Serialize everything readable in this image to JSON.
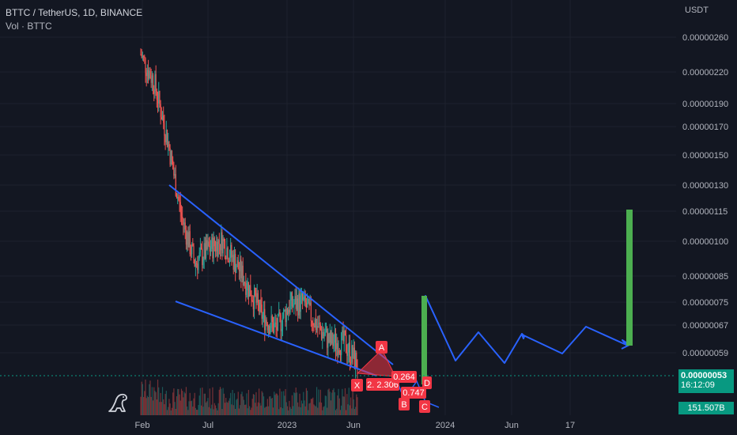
{
  "header": {
    "symbol_line": "BTTC / TetherUS, 1D, BINANCE",
    "volume_line": "Vol · BTTC"
  },
  "price_axis": {
    "unit": "USDT",
    "ticks": [
      "0.00000260",
      "0.00000220",
      "0.00000190",
      "0.00000170",
      "0.00000150",
      "0.00000130",
      "0.00000115",
      "0.00000100",
      "0.00000085",
      "0.00000075",
      "0.00000067",
      "0.00000059"
    ]
  },
  "time_axis": {
    "ticks": [
      "Feb",
      "Jul",
      "2023",
      "Jun",
      "2024",
      "Jun",
      "17"
    ]
  },
  "last_price": {
    "value": "0.00000053",
    "countdown": "16:12:09",
    "color": "#089981"
  },
  "volume_tag": {
    "value": "151.507B",
    "color": "#089981"
  },
  "harmonic_labels": {
    "X": "X",
    "A": "A",
    "B": "B",
    "C": "C",
    "D": "D",
    "ratio_xab": "2. 2.306",
    "ratio_1": "0.264",
    "ratio_2": "0.747"
  },
  "colors": {
    "background": "#131722",
    "up": "#26a69a",
    "down": "#ef5350",
    "trendline": "#2962ff",
    "projection": "#2962ff",
    "target_bar": "#4caf50",
    "harmonic": "#f23645"
  },
  "icons": {
    "logo": "tradingview-dino-icon"
  },
  "chart_data": {
    "type": "candlestick",
    "symbol": "BTTC / TetherUS",
    "interval": "1D",
    "exchange": "BINANCE",
    "y_scale": "log",
    "ylim": [
      5e-07,
      2.7e-06
    ],
    "x_ticks": [
      "Feb",
      "Jul",
      "2023",
      "Jun",
      "2024",
      "Jun",
      "17"
    ],
    "last_price": 5.3e-07,
    "volume_last": "151.507B",
    "price_path": [
      {
        "x": "Feb",
        "price": 2.4e-06
      },
      {
        "x": "Mar",
        "price": 2.1e-06
      },
      {
        "x": "Apr",
        "price": 1.6e-06
      },
      {
        "x": "May",
        "price": 1.12e-06
      },
      {
        "x": "Jun",
        "price": 9e-07
      },
      {
        "x": "Jul",
        "price": 9.6e-07
      },
      {
        "x": "Aug",
        "price": 1e-06
      },
      {
        "x": "Sep",
        "price": 9e-07
      },
      {
        "x": "Oct",
        "price": 8e-07
      },
      {
        "x": "Nov",
        "price": 7e-07
      },
      {
        "x": "Dec",
        "price": 6.6e-07
      },
      {
        "x": "2023",
        "price": 7.4e-07
      },
      {
        "x": "Feb 2023",
        "price": 7.5e-07
      },
      {
        "x": "Mar 2023",
        "price": 6.7e-07
      },
      {
        "x": "Apr 2023",
        "price": 6.2e-07
      },
      {
        "x": "May 2023",
        "price": 6.2e-07
      },
      {
        "x": "Jun",
        "price": 5.6e-07
      }
    ],
    "wedge_upper": [
      {
        "price": 1.3e-06
      },
      {
        "price": 5.3e-07
      }
    ],
    "wedge_lower": [
      {
        "price": 7.8e-07
      },
      {
        "price": 5.5e-07
      }
    ],
    "projection_path": [
      5e-07,
      7.5e-07,
      5.9e-07,
      6.5e-07,
      5.9e-07,
      6.5e-07,
      6e-07,
      6.6e-07,
      6e-07
    ],
    "target_bars": [
      {
        "from": 5.3e-07,
        "to": 7.5e-07
      },
      {
        "from": 6.2e-07,
        "to": 1.15e-06
      }
    ]
  }
}
